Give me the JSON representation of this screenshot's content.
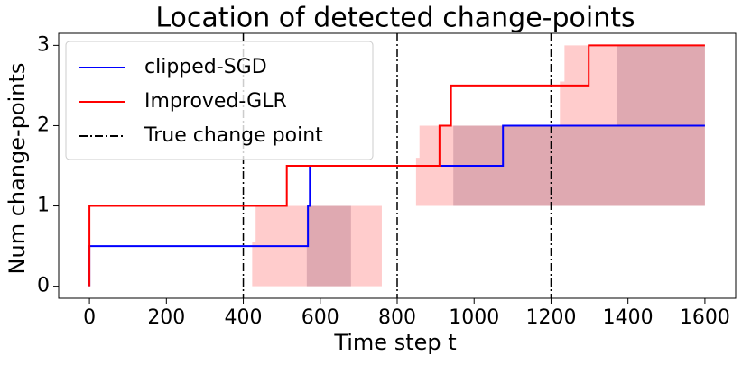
{
  "chart_data": {
    "type": "step",
    "title": "Location of detected change-points",
    "x_label": "Time step t",
    "y_label": "Num change-points",
    "xlim": [
      -80,
      1680
    ],
    "ylim": [
      -0.15,
      3.15
    ],
    "xticks": [
      0,
      200,
      400,
      600,
      800,
      1000,
      1200,
      1400,
      1600
    ],
    "yticks": [
      0,
      1,
      2,
      3
    ],
    "bands": [
      {
        "color": "#ff0000",
        "opacity": 0.2,
        "x": [
          0,
          423,
          432,
          760,
          849,
          858,
          1223,
          1235,
          1600
        ],
        "upper": [
          0,
          0.55,
          1,
          1,
          1.6,
          2,
          2.55,
          3,
          3
        ],
        "lower": [
          0,
          0,
          0,
          1,
          1,
          1,
          1,
          1,
          1
        ]
      },
      {
        "color": "#804060",
        "opacity": 0.25,
        "x": [
          0,
          565,
          680,
          946,
          1372,
          1600
        ],
        "upper": [
          0,
          1,
          1,
          2,
          3,
          3
        ],
        "lower": [
          0,
          0,
          1,
          1,
          1,
          1
        ]
      }
    ],
    "series": [
      {
        "name": "clipped-SGD",
        "color": "#0000ff",
        "x": [
          0,
          568,
          573,
          1075,
          1080,
          1600
        ],
        "values": [
          0,
          0.5,
          1,
          1.5,
          2,
          2
        ]
      },
      {
        "name": "Improved-GLR",
        "color": "#ff0000",
        "x": [
          0,
          513,
          910,
          940,
          1298,
          1316,
          1600
        ],
        "values": [
          0,
          1,
          1.5,
          2,
          2.5,
          3,
          3
        ]
      }
    ],
    "vlines": {
      "name": "True change point",
      "color": "#000000",
      "x": [
        400,
        800,
        1200
      ]
    },
    "legend": "upper left"
  }
}
